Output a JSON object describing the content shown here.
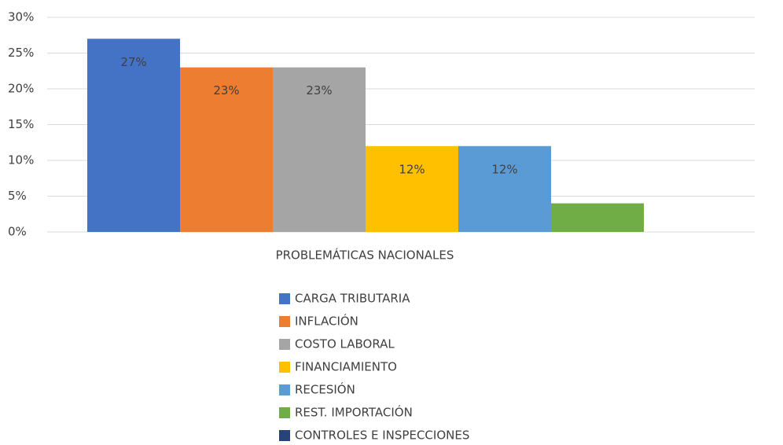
{
  "chart_data": {
    "type": "bar",
    "categories": [
      "PROBLEMÁTICAS NACIONALES"
    ],
    "series": [
      {
        "name": "CARGA TRIBUTARIA",
        "color": "#4472c4",
        "values": [
          27
        ],
        "value_labels": [
          "27%"
        ]
      },
      {
        "name": "INFLACIÓN",
        "color": "#ed7d31",
        "values": [
          23
        ],
        "value_labels": [
          "23%"
        ]
      },
      {
        "name": "COSTO LABORAL",
        "color": "#a5a5a5",
        "values": [
          23
        ],
        "value_labels": [
          "23%"
        ]
      },
      {
        "name": "FINANCIAMIENTO",
        "color": "#ffc000",
        "values": [
          12
        ],
        "value_labels": [
          "12%"
        ]
      },
      {
        "name": "RECESIÓN",
        "color": "#5b9bd5",
        "values": [
          12
        ],
        "value_labels": [
          "12%"
        ]
      },
      {
        "name": "REST. IMPORTACIÓN",
        "color": "#70ad47",
        "values": [
          4
        ]
      },
      {
        "name": "CONTROLES E INSPECCIONES",
        "color": "#264478",
        "values": [
          0
        ]
      }
    ],
    "ylim": [
      0,
      30
    ],
    "yticks": [
      {
        "value": 0,
        "label": "0%"
      },
      {
        "value": 5,
        "label": "5%"
      },
      {
        "value": 10,
        "label": "10%"
      },
      {
        "value": 15,
        "label": "15%"
      },
      {
        "value": 20,
        "label": "20%"
      },
      {
        "value": 25,
        "label": "25%"
      },
      {
        "value": 30,
        "label": "30%"
      }
    ],
    "grid": true,
    "legend": "bottom"
  }
}
